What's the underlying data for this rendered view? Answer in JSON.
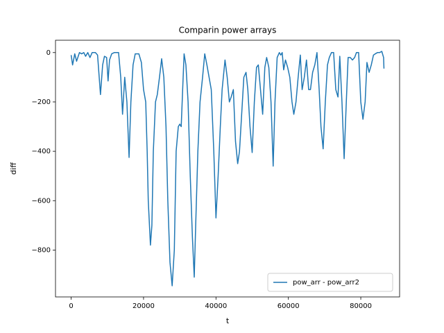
{
  "chart_data": {
    "type": "line",
    "title": "Comparin power arrays",
    "x_label": "t",
    "y_label": "diff",
    "x": [
      0,
      400,
      1000,
      1500,
      2300,
      2900,
      3500,
      4000,
      4600,
      5200,
      5800,
      6700,
      7300,
      8100,
      8700,
      9200,
      9800,
      10200,
      10600,
      11200,
      11900,
      13100,
      13700,
      14200,
      14800,
      15400,
      16000,
      16500,
      17100,
      17700,
      18700,
      19400,
      20000,
      20600,
      21000,
      21300,
      21900,
      22300,
      22700,
      23300,
      23800,
      24400,
      25000,
      25600,
      26200,
      26700,
      27300,
      27900,
      28500,
      29000,
      29600,
      30000,
      30400,
      30800,
      31200,
      31700,
      32300,
      32900,
      33500,
      34000,
      34400,
      35000,
      35600,
      36300,
      36900,
      37500,
      38100,
      38700,
      39400,
      40000,
      40600,
      41200,
      41700,
      42500,
      43100,
      43700,
      44200,
      44800,
      45400,
      46000,
      46500,
      47100,
      47700,
      48300,
      48800,
      49400,
      50000,
      50600,
      51200,
      51700,
      52300,
      52900,
      53500,
      54000,
      54600,
      55200,
      55800,
      56300,
      56900,
      57500,
      57900,
      58300,
      58700,
      59200,
      59800,
      60400,
      61000,
      61500,
      62100,
      62700,
      63300,
      63800,
      64400,
      65000,
      65600,
      66100,
      66700,
      67300,
      67900,
      68500,
      69000,
      69600,
      70200,
      70800,
      71300,
      71900,
      72500,
      73100,
      73700,
      74200,
      74800,
      75400,
      76000,
      76500,
      77100,
      77700,
      78300,
      78800,
      79400,
      80000,
      80600,
      81200,
      81700,
      82300,
      82900,
      83500,
      84000,
      84600,
      85200,
      85800,
      86300,
      86400
    ],
    "series": [
      {
        "name": "pow_arr - pow_arr2",
        "color": "#1f77b4",
        "values": [
          -10,
          -50,
          -5,
          -35,
          0,
          -5,
          0,
          -15,
          0,
          -20,
          0,
          0,
          -10,
          -170,
          -50,
          -15,
          -20,
          -115,
          -30,
          -5,
          0,
          0,
          -100,
          -250,
          -100,
          -200,
          -425,
          -200,
          -50,
          -5,
          -5,
          -40,
          -150,
          -200,
          -400,
          -600,
          -780,
          -700,
          -400,
          -200,
          -170,
          -100,
          -25,
          -100,
          -300,
          -600,
          -850,
          -945,
          -800,
          -400,
          -300,
          -290,
          -300,
          -150,
          -5,
          -50,
          -200,
          -500,
          -750,
          -910,
          -700,
          -400,
          -200,
          -100,
          -5,
          -50,
          -100,
          -150,
          -400,
          -670,
          -500,
          -300,
          -150,
          -30,
          -100,
          -200,
          -180,
          -150,
          -360,
          -450,
          -400,
          -250,
          -100,
          -80,
          -150,
          -300,
          -405,
          -200,
          -60,
          -50,
          -150,
          -250,
          -60,
          -20,
          -60,
          -200,
          -460,
          -200,
          -20,
          0,
          -10,
          0,
          -70,
          -30,
          -60,
          -100,
          -200,
          -250,
          -200,
          -100,
          -10,
          -150,
          -100,
          -30,
          -150,
          -150,
          -80,
          -50,
          0,
          -150,
          -300,
          -390,
          -200,
          -50,
          -20,
          0,
          0,
          -150,
          -180,
          -15,
          -200,
          -430,
          -200,
          -20,
          -20,
          -30,
          -20,
          0,
          0,
          -200,
          -270,
          -200,
          -40,
          -80,
          -50,
          -10,
          -5,
          0,
          0,
          5,
          -20,
          -65
        ]
      }
    ],
    "xlim": [
      -4320,
      90720
    ],
    "ylim": [
      -990,
      50
    ],
    "xticks": [
      0,
      20000,
      40000,
      60000,
      80000
    ],
    "yticks": [
      {
        "value": -800,
        "label": "−800"
      },
      {
        "value": -600,
        "label": "−600"
      },
      {
        "value": -400,
        "label": "−400"
      },
      {
        "value": -200,
        "label": "−200"
      },
      0
    ],
    "legend": "lower right"
  }
}
